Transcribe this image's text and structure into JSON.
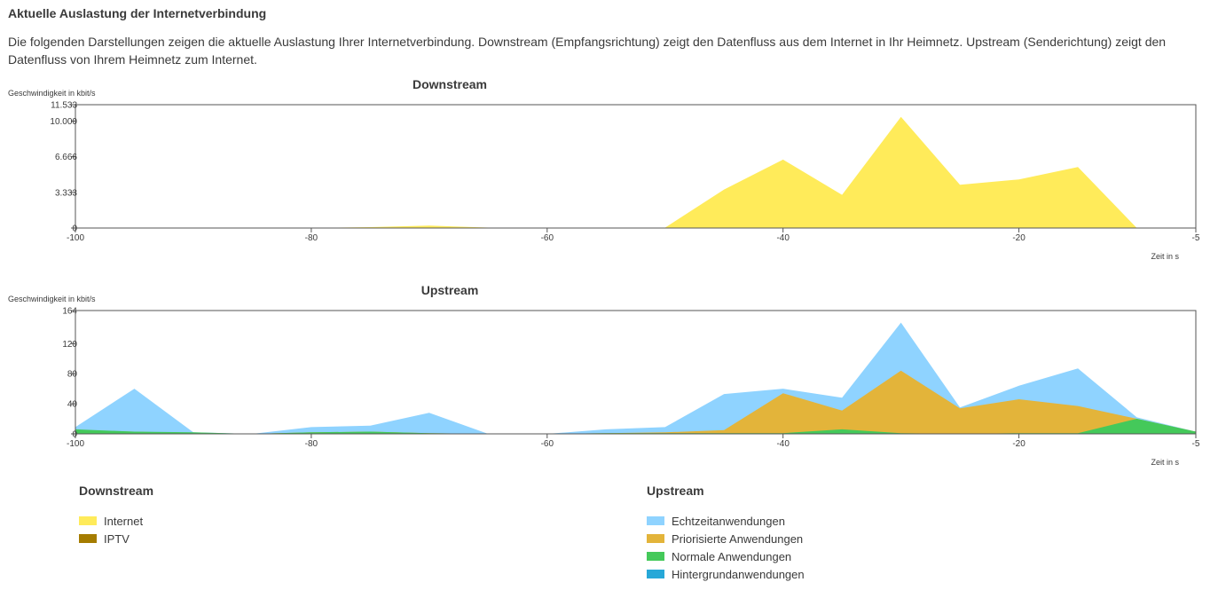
{
  "header": {
    "title": "Aktuelle Auslastung der Internetverbindung",
    "description": "Die folgenden Darstellungen zeigen die aktuelle Auslastung Ihrer Internetverbindung. Downstream (Empfangsrichtung) zeigt den Datenfluss aus dem Internet in Ihr Heimnetz. Upstream (Senderichtung) zeigt den Datenfluss von Ihrem Heimnetz zum Internet."
  },
  "chart_data": [
    {
      "type": "area",
      "title": "Downstream",
      "ylabel": "Geschwindigkeit in kbit/s",
      "xlabel": "Zeit in s",
      "xlim": [
        -100,
        -5
      ],
      "ylim": [
        0,
        11533
      ],
      "xticks": [
        "-100",
        "-80",
        "-60",
        "-40",
        "-20",
        "-5"
      ],
      "xtick_values": [
        -100,
        -80,
        -60,
        -40,
        -20,
        -5
      ],
      "yticks": [
        "0",
        "3.333",
        "6.666",
        "10.000",
        "11.533"
      ],
      "ytick_values": [
        0,
        3333,
        6666,
        10000,
        11533
      ],
      "x": [
        -100,
        -95,
        -90,
        -85,
        -80,
        -75,
        -70,
        -65,
        -60,
        -55,
        -50,
        -45,
        -40,
        -35,
        -30,
        -25,
        -20,
        -15,
        -10,
        -5
      ],
      "series": [
        {
          "name": "Internet",
          "color": "#ffeb5a",
          "values": [
            0,
            0,
            0,
            0,
            0,
            80,
            220,
            40,
            0,
            40,
            30,
            3600,
            6400,
            3100,
            10400,
            4050,
            4550,
            5700,
            0,
            0
          ]
        },
        {
          "name": "IPTV",
          "color": "#a57c00",
          "values": [
            0,
            0,
            0,
            0,
            0,
            0,
            0,
            0,
            0,
            0,
            0,
            0,
            0,
            0,
            0,
            0,
            0,
            0,
            0,
            0
          ]
        }
      ]
    },
    {
      "type": "area",
      "title": "Upstream",
      "ylabel": "Geschwindigkeit in kbit/s",
      "xlabel": "Zeit in s",
      "xlim": [
        -100,
        -5
      ],
      "ylim": [
        0,
        164
      ],
      "xticks": [
        "-100",
        "-80",
        "-60",
        "-40",
        "-20",
        "-5"
      ],
      "xtick_values": [
        -100,
        -80,
        -60,
        -40,
        -20,
        -5
      ],
      "yticks": [
        "0",
        "40",
        "80",
        "120",
        "164"
      ],
      "ytick_values": [
        0,
        40,
        80,
        120,
        164
      ],
      "x": [
        -100,
        -95,
        -90,
        -85,
        -80,
        -75,
        -70,
        -65,
        -60,
        -55,
        -50,
        -45,
        -40,
        -35,
        -30,
        -25,
        -20,
        -15,
        -10,
        -5
      ],
      "series": [
        {
          "name": "Echtzeitanwendungen",
          "color": "#8fd3ff",
          "values": [
            9,
            60,
            2,
            0,
            9,
            11,
            28,
            0,
            0,
            6,
            9,
            53,
            60,
            48,
            148,
            35,
            64,
            87,
            22,
            3
          ]
        },
        {
          "name": "Priorisierte Anwendungen",
          "color": "#e3b43a",
          "values": [
            4,
            3,
            1,
            0,
            2,
            3,
            1,
            0,
            0,
            1,
            2,
            5,
            54,
            31,
            84,
            34,
            46,
            37,
            20,
            3
          ]
        },
        {
          "name": "Normale Anwendungen",
          "color": "#44c95a",
          "values": [
            6,
            3,
            2,
            0,
            2,
            3,
            1,
            0,
            0,
            1,
            1,
            1,
            1,
            6,
            1,
            0,
            1,
            1,
            20,
            3
          ]
        },
        {
          "name": "Hintergrundanwendungen",
          "color": "#27a8d8",
          "values": [
            0,
            0,
            0,
            0,
            0,
            0,
            0,
            0,
            0,
            0,
            0,
            0,
            0,
            0,
            0,
            0,
            0,
            0,
            0,
            0
          ]
        }
      ]
    }
  ],
  "legend": {
    "downstream_title": "Downstream",
    "upstream_title": "Upstream"
  }
}
